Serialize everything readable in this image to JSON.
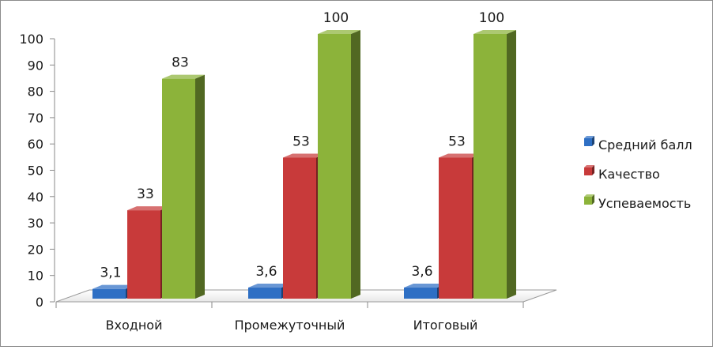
{
  "chart_data": {
    "type": "bar",
    "title": "",
    "xlabel": "",
    "ylabel": "",
    "ylim": [
      0,
      100
    ],
    "yticks": [
      0,
      10,
      20,
      30,
      40,
      50,
      60,
      70,
      80,
      90,
      100
    ],
    "categories": [
      "Входной",
      "Промежуточный",
      "Итоговый"
    ],
    "series": [
      {
        "name": "Средний балл",
        "values": [
          3.1,
          3.6,
          3.6
        ],
        "labels": [
          "3,1",
          "3,6",
          "3,6"
        ],
        "color": "#2e6fc4"
      },
      {
        "name": "Качество",
        "values": [
          33,
          53,
          53
        ],
        "labels": [
          "33",
          "53",
          "53"
        ],
        "color": "#c83a3a"
      },
      {
        "name": "Успеваемость",
        "values": [
          83,
          100,
          100
        ],
        "labels": [
          "83",
          "100",
          "100"
        ],
        "color": "#8cb33a"
      }
    ],
    "legend_position": "right",
    "grid": false,
    "style": "3d-clustered-column"
  }
}
